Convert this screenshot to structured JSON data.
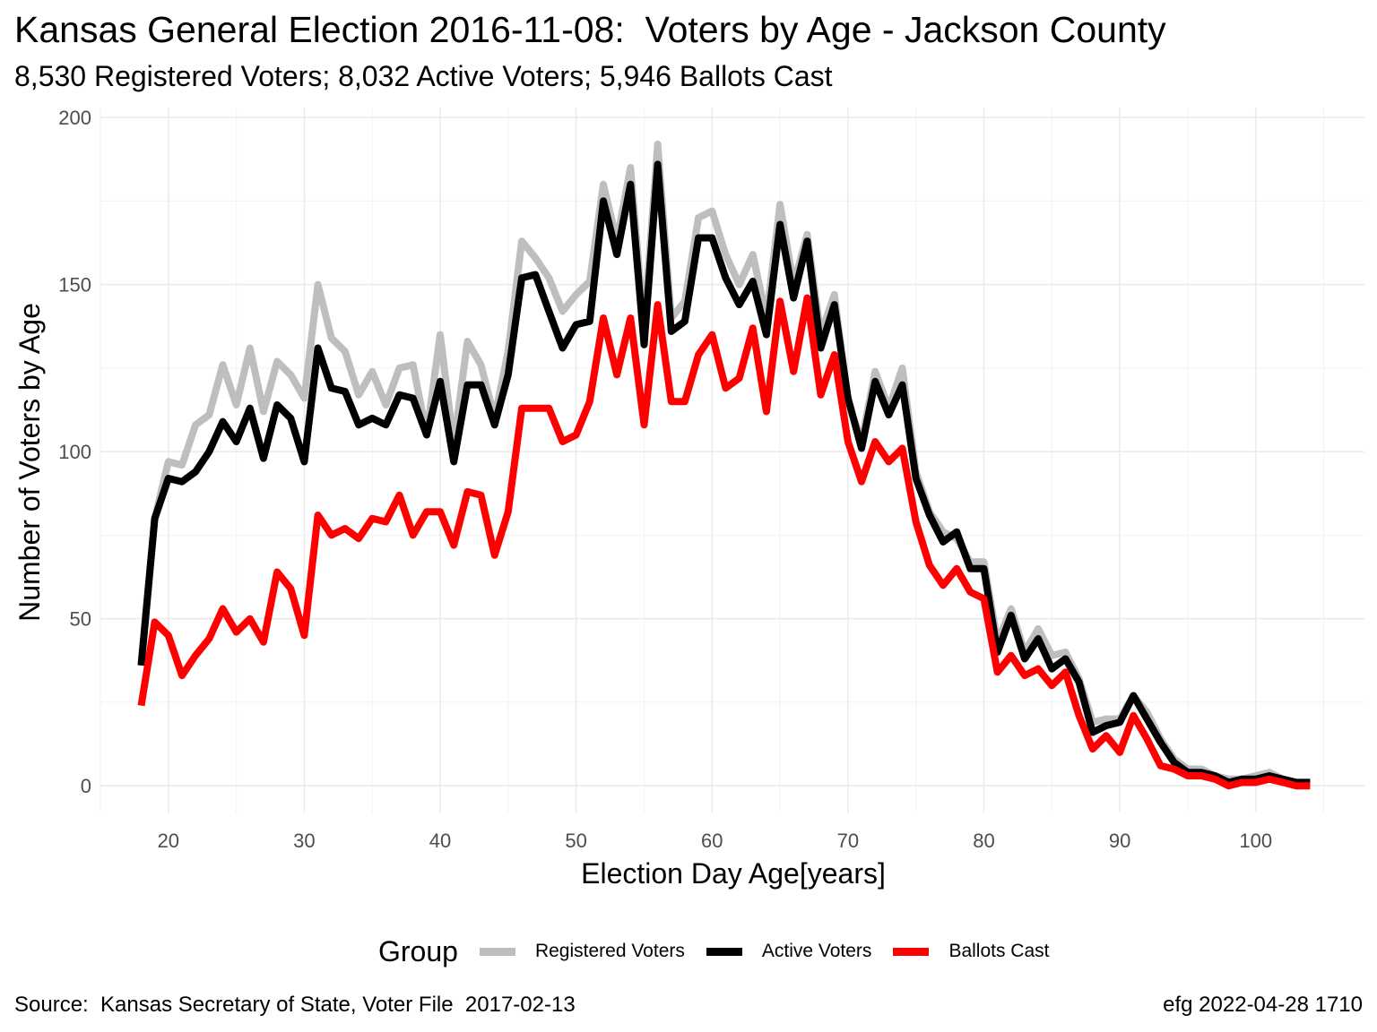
{
  "title": "Kansas General Election 2016-11-08:  Voters by Age - Jackson County",
  "subtitle": "8,530 Registered Voters; 8,032 Active Voters; 5,946 Ballots Cast",
  "caption_left": "Source:  Kansas Secretary of State, Voter File  2017-02-13",
  "caption_right": "efg 2022-04-28 1710",
  "legend": {
    "title": "Group",
    "items": [
      {
        "label": "Registered Voters",
        "color": "#bebebe"
      },
      {
        "label": "Active Voters",
        "color": "#000000"
      },
      {
        "label": "Ballots Cast",
        "color": "#ff0000"
      }
    ]
  },
  "chart_data": {
    "type": "line",
    "title": "Kansas General Election 2016-11-08:  Voters by Age - Jackson County",
    "subtitle": "8,530 Registered Voters; 8,032 Active Voters; 5,946 Ballots Cast",
    "xlabel": "Election Day Age[years]",
    "ylabel": "Number of Voters by Age",
    "xlim": [
      15,
      108
    ],
    "ylim": [
      -8,
      203
    ],
    "xticks": [
      20,
      30,
      40,
      50,
      60,
      70,
      80,
      90,
      100
    ],
    "yticks": [
      0,
      50,
      100,
      150,
      200
    ],
    "grid": true,
    "legend_position": "bottom",
    "x": [
      18,
      19,
      20,
      21,
      22,
      23,
      24,
      25,
      26,
      27,
      28,
      29,
      30,
      31,
      32,
      33,
      34,
      35,
      36,
      37,
      38,
      39,
      40,
      41,
      42,
      43,
      44,
      45,
      46,
      47,
      48,
      49,
      50,
      51,
      52,
      53,
      54,
      55,
      56,
      57,
      58,
      59,
      60,
      61,
      62,
      63,
      64,
      65,
      66,
      67,
      68,
      69,
      70,
      71,
      72,
      73,
      74,
      75,
      76,
      77,
      78,
      79,
      80,
      81,
      82,
      83,
      84,
      85,
      86,
      87,
      88,
      89,
      90,
      91,
      92,
      93,
      94,
      95,
      96,
      97,
      98,
      99,
      100,
      101,
      102,
      103,
      104
    ],
    "series": [
      {
        "name": "Registered Voters",
        "color": "#bebebe",
        "values": [
          37,
          80,
          97,
          96,
          108,
          111,
          126,
          114,
          131,
          112,
          127,
          123,
          116,
          150,
          134,
          130,
          117,
          124,
          114,
          125,
          126,
          105,
          135,
          102,
          133,
          126,
          110,
          130,
          163,
          158,
          152,
          142,
          147,
          151,
          180,
          163,
          185,
          137,
          192,
          140,
          145,
          170,
          172,
          159,
          150,
          159,
          140,
          174,
          150,
          165,
          135,
          147,
          115,
          103,
          124,
          113,
          125,
          94,
          82,
          76,
          74,
          67,
          67,
          43,
          53,
          40,
          47,
          39,
          40,
          32,
          19,
          20,
          20,
          27,
          22,
          14,
          8,
          5,
          5,
          3,
          2,
          2,
          3,
          4,
          2,
          1,
          1
        ]
      },
      {
        "name": "Active Voters",
        "color": "#000000",
        "values": [
          36,
          80,
          92,
          91,
          94,
          100,
          109,
          103,
          113,
          98,
          114,
          110,
          97,
          131,
          119,
          118,
          108,
          110,
          108,
          117,
          116,
          105,
          121,
          97,
          120,
          120,
          108,
          123,
          152,
          153,
          142,
          131,
          138,
          139,
          175,
          159,
          180,
          132,
          186,
          136,
          139,
          164,
          164,
          152,
          144,
          151,
          135,
          168,
          146,
          163,
          131,
          144,
          116,
          101,
          121,
          111,
          120,
          92,
          81,
          73,
          76,
          65,
          65,
          40,
          51,
          38,
          44,
          35,
          38,
          31,
          16,
          18,
          19,
          27,
          20,
          13,
          7,
          4,
          4,
          3,
          1,
          2,
          2,
          3,
          2,
          1,
          1
        ]
      },
      {
        "name": "Ballots Cast",
        "color": "#ff0000",
        "values": [
          24,
          49,
          45,
          33,
          39,
          44,
          53,
          46,
          50,
          43,
          64,
          59,
          45,
          81,
          75,
          77,
          74,
          80,
          79,
          87,
          75,
          82,
          82,
          72,
          88,
          87,
          69,
          82,
          113,
          113,
          113,
          103,
          105,
          115,
          140,
          123,
          140,
          108,
          144,
          115,
          115,
          129,
          135,
          119,
          122,
          137,
          112,
          145,
          124,
          146,
          117,
          129,
          103,
          91,
          103,
          97,
          101,
          79,
          66,
          60,
          65,
          58,
          56,
          34,
          39,
          33,
          35,
          30,
          34,
          21,
          11,
          15,
          10,
          21,
          14,
          6,
          5,
          3,
          3,
          2,
          0,
          1,
          1,
          2,
          1,
          0,
          0
        ]
      }
    ]
  }
}
